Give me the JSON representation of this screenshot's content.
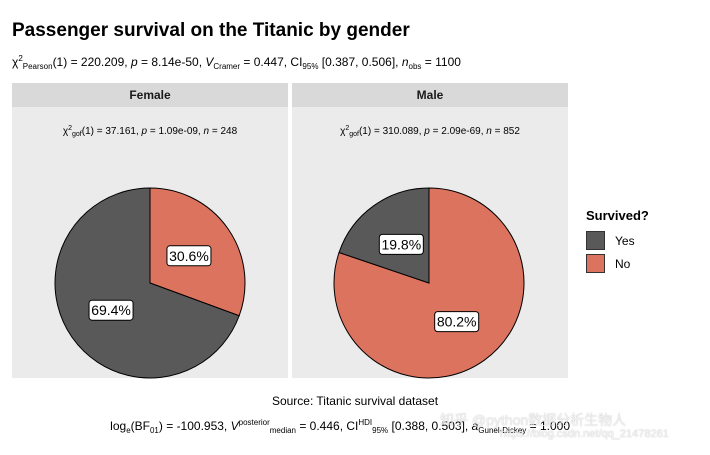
{
  "chart_data": {
    "type": "pie",
    "title": "Passenger survival on the Titanic by gender",
    "subtitle": {
      "pre": "χ",
      "sup1": "2",
      "sub1": "Pearson",
      "part1": "(1) = 220.209, ",
      "p_sym": "p",
      "part2": " = 8.14e-50, ",
      "v_sym": "V",
      "sub2": "Cramer",
      "part3": " = 0.447, CI",
      "sub3": "95%",
      "part4": " [0.387, 0.506], ",
      "n_sym": "n",
      "sub4": "obs",
      "part5": " = 1100"
    },
    "legend": {
      "title": "Survived?",
      "entries": [
        {
          "label": "Yes",
          "color": "#595959"
        },
        {
          "label": "No",
          "color": "#dc735e"
        }
      ]
    },
    "panels": [
      {
        "label": "Female",
        "stat": {
          "chi": "χ",
          "sup": "2",
          "sub": "gof",
          "text": "(1) = 37.161,  ",
          "p": "p",
          "ptext": " = 1.09e-09,  ",
          "n": "n",
          "ntext": " = 248"
        },
        "slices": [
          {
            "category": "Yes",
            "value": 69.4,
            "label": "69.4%"
          },
          {
            "category": "No",
            "value": 30.6,
            "label": "30.6%"
          }
        ]
      },
      {
        "label": "Male",
        "stat": {
          "chi": "χ",
          "sup": "2",
          "sub": "gof",
          "text": "(1) = 310.089,  ",
          "p": "p",
          "ptext": " = 2.09e-69,  ",
          "n": "n",
          "ntext": " = 852"
        },
        "slices": [
          {
            "category": "Yes",
            "value": 19.8,
            "label": "19.8%"
          },
          {
            "category": "No",
            "value": 80.2,
            "label": "80.2%"
          }
        ]
      }
    ],
    "caption_source": "Source: Titanic survival dataset",
    "caption_bf": {
      "a": "log",
      "a_sub": "e",
      "b": "(BF",
      "b_sub": "01",
      "c": ") = -100.953, ",
      "v": "V",
      "v_sup": "posterior",
      "v_sub": "median",
      "d": " = 0.446, CI",
      "ci_sup": "HDI",
      "ci_sub": "95%",
      "e": " [0.388, 0.503], ",
      "a2": "a",
      "a2_sub": "Gunel-Dickey",
      "f": " = 1.000"
    },
    "watermark": "知乎 @python数据分析生物人",
    "watermark2": "https://blog.csdn.net/qq_21478261"
  }
}
